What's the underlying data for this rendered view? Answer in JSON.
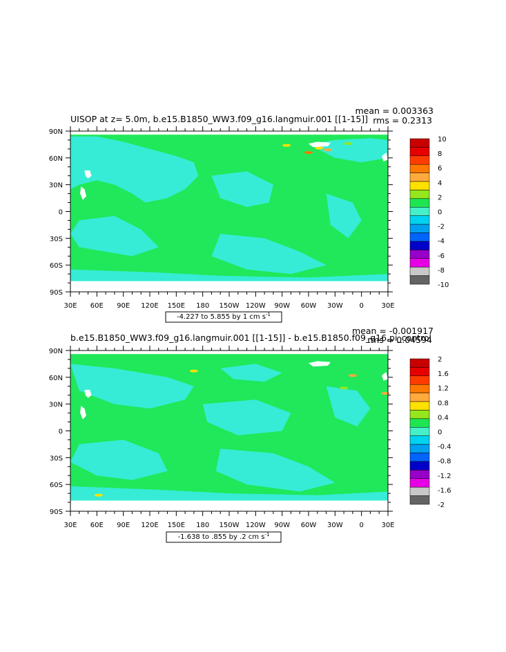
{
  "chart_data": [
    {
      "type": "heatmap",
      "title": "UISOP at z=    5.0m, b.e15.B1850_WW3.f09_g16.langmuir.001 [[1-15]]",
      "stats": {
        "mean": "mean = 0.003363",
        "rms": "rms = 0.2313"
      },
      "xlim": [
        30,
        390
      ],
      "ylim": [
        -90,
        90
      ],
      "x_ticks": [
        {
          "v": 30,
          "label": "30E"
        },
        {
          "v": 60,
          "label": "60E"
        },
        {
          "v": 90,
          "label": "90E"
        },
        {
          "v": 120,
          "label": "120E"
        },
        {
          "v": 150,
          "label": "150E"
        },
        {
          "v": 180,
          "label": "180"
        },
        {
          "v": 210,
          "label": "150W"
        },
        {
          "v": 240,
          "label": "120W"
        },
        {
          "v": 270,
          "label": "90W"
        },
        {
          "v": 300,
          "label": "60W"
        },
        {
          "v": 330,
          "label": "30W"
        },
        {
          "v": 360,
          "label": "0"
        },
        {
          "v": 390,
          "label": "30E"
        }
      ],
      "y_ticks": [
        {
          "v": 90,
          "label": "90N"
        },
        {
          "v": 60,
          "label": "60N"
        },
        {
          "v": 30,
          "label": "30N"
        },
        {
          "v": 0,
          "label": "0"
        },
        {
          "v": -30,
          "label": "30S"
        },
        {
          "v": -60,
          "label": "60S"
        },
        {
          "v": -90,
          "label": "90S"
        }
      ],
      "contour_info": "-4.227 to 5.855 by 1 cm s",
      "contour_unit_exp": "-1",
      "data_lat_range": [
        -78,
        86
      ],
      "colorbar": {
        "labels": [
          "10",
          "8",
          "6",
          "4",
          "2",
          "0",
          "-2",
          "-4",
          "-6",
          "-8",
          "-10"
        ],
        "colors": [
          "#c80000",
          "#e60000",
          "#ff3c00",
          "#ff7800",
          "#ffaa3c",
          "#ffe100",
          "#96e61e",
          "#1ee650",
          "#46f0c8",
          "#00d2f0",
          "#00a0f0",
          "#0064ff",
          "#0000c8",
          "#9600c8",
          "#e600e6",
          "#c8c8c8",
          "#646464"
        ]
      },
      "field": {
        "base_color": "#20e85a",
        "secondary_color": "#36ecd6",
        "land_mask_color": "#ffffff"
      }
    },
    {
      "type": "heatmap",
      "title": "b.e15.B1850_WW3.f09_g16.langmuir.001 [[1-15]] - b.e15.B1850.f09_g16.pi_control",
      "stats": {
        "mean": "mean = -0.001917",
        "rms": "rms = 0.04594"
      },
      "xlim": [
        30,
        390
      ],
      "ylim": [
        -90,
        90
      ],
      "x_ticks": [
        {
          "v": 30,
          "label": "30E"
        },
        {
          "v": 60,
          "label": "60E"
        },
        {
          "v": 90,
          "label": "90E"
        },
        {
          "v": 120,
          "label": "120E"
        },
        {
          "v": 150,
          "label": "150E"
        },
        {
          "v": 180,
          "label": "180"
        },
        {
          "v": 210,
          "label": "150W"
        },
        {
          "v": 240,
          "label": "120W"
        },
        {
          "v": 270,
          "label": "90W"
        },
        {
          "v": 300,
          "label": "60W"
        },
        {
          "v": 330,
          "label": "30W"
        },
        {
          "v": 360,
          "label": "0"
        },
        {
          "v": 390,
          "label": "30E"
        }
      ],
      "y_ticks": [
        {
          "v": 90,
          "label": "90N"
        },
        {
          "v": 60,
          "label": "60N"
        },
        {
          "v": 30,
          "label": "30N"
        },
        {
          "v": 0,
          "label": "0"
        },
        {
          "v": -30,
          "label": "30S"
        },
        {
          "v": -60,
          "label": "60S"
        },
        {
          "v": -90,
          "label": "90S"
        }
      ],
      "contour_info": "-1.638 to .855 by .2 cm s",
      "contour_unit_exp": "-1",
      "data_lat_range": [
        -78,
        86
      ],
      "colorbar": {
        "labels": [
          "2",
          "1.6",
          "1.2",
          "0.8",
          "0.4",
          "0",
          "-0.4",
          "-0.8",
          "-1.2",
          "-1.6",
          "-2"
        ],
        "colors": [
          "#c80000",
          "#e60000",
          "#ff3c00",
          "#ff7800",
          "#ffaa3c",
          "#ffe100",
          "#96e61e",
          "#1ee650",
          "#46f0c8",
          "#00d2f0",
          "#00a0f0",
          "#0064ff",
          "#0000c8",
          "#9600c8",
          "#e600e6",
          "#c8c8c8",
          "#646464"
        ]
      },
      "field": {
        "base_color": "#20e85a",
        "secondary_color": "#36ecd6",
        "land_mask_color": "#ffffff"
      }
    }
  ]
}
